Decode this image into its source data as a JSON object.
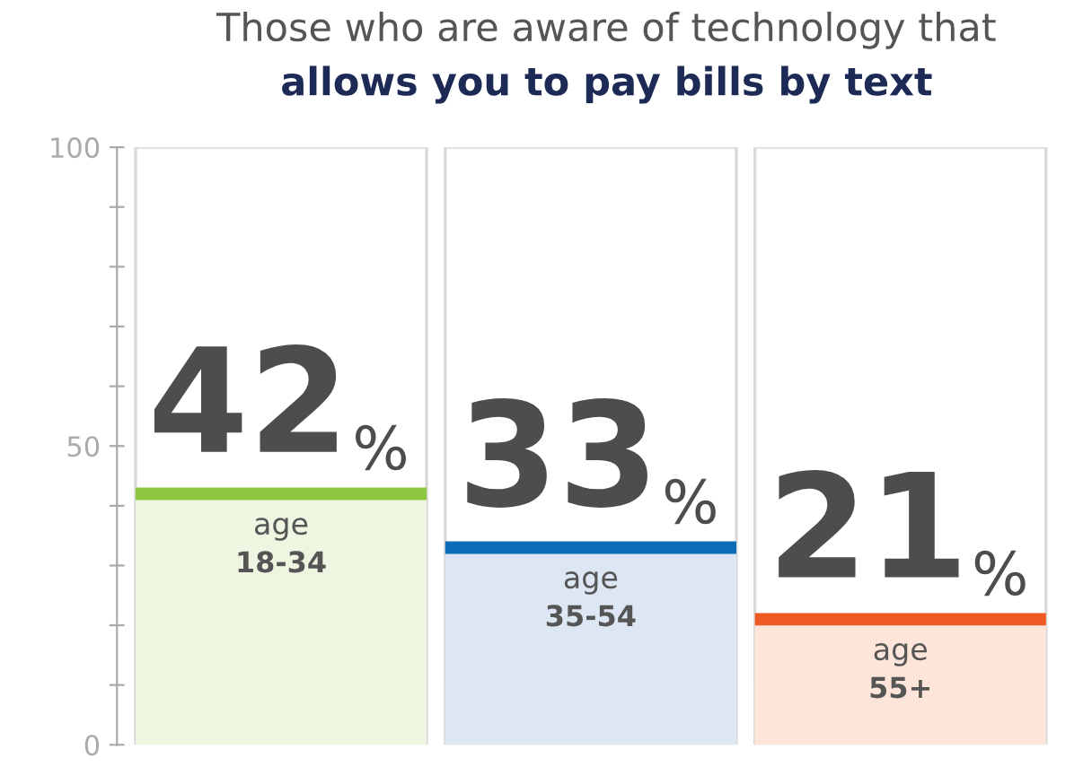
{
  "chart_data": {
    "type": "bar",
    "title": "Those who are aware of technology that",
    "subtitle": "allows you to pay bills by text",
    "categories": [
      "age\n18-34",
      "age\n35-54",
      "age\n55+"
    ],
    "values": [
      42,
      33,
      21
    ],
    "value_labels": [
      "42%",
      "33%",
      "21%"
    ],
    "colors": [
      "#eef6e2",
      "#dce7f3",
      "#fde5da"
    ],
    "ylim": [
      0,
      100
    ],
    "yticks": [
      0,
      {
        "value": 10,
        "label": null
      },
      {
        "value": 20,
        "label": null
      },
      {
        "value": 30,
        "label": null
      },
      {
        "value": 40,
        "label": null
      },
      50,
      {
        "value": 60,
        "label": null
      },
      {
        "value": 70,
        "label": null
      },
      {
        "value": 80,
        "label": null
      },
      {
        "value": 90,
        "label": null
      },
      100
    ],
    "grid": false,
    "legend": false
  }
}
